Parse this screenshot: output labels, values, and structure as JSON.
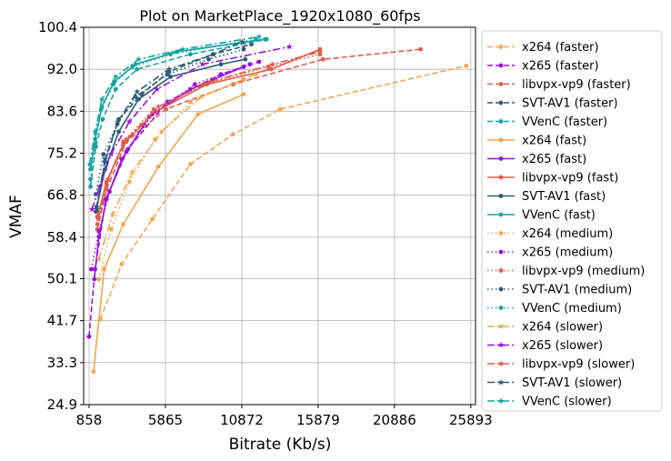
{
  "chart_data": {
    "type": "line",
    "title": "Plot on MarketPlace_1920x1080_60fps",
    "xlabel": "Bitrate (Kb/s)",
    "ylabel": "VMAF",
    "xlim": [
      858,
      25893
    ],
    "ylim": [
      24.9,
      100.4
    ],
    "xticks": [
      "858",
      "5865",
      "10872",
      "15879",
      "20886",
      "25893"
    ],
    "yticks": [
      "24.9",
      "33.3",
      "41.7",
      "50.1",
      "58.4",
      "66.8",
      "75.2",
      "83.6",
      "92.0",
      "100.4"
    ],
    "grid": true,
    "legend_position": "outside-right",
    "series": [
      {
        "name": "x264 (faster)",
        "color": "#f5a54a",
        "dash": "dashed",
        "marker": "circle",
        "x": [
          1600,
          3000,
          5000,
          7500,
          10300,
          13400,
          25600
        ],
        "y": [
          42,
          53,
          62,
          73,
          79,
          84,
          92.7
        ]
      },
      {
        "name": "x265 (faster)",
        "color": "#9b0ee3",
        "dash": "dashed",
        "marker": "circle",
        "x": [
          850,
          1250,
          1950,
          3400,
          6000,
          9500,
          12000
        ],
        "y": [
          38.5,
          52,
          66,
          76,
          85.5,
          91,
          93.5
        ]
      },
      {
        "name": "libvpx-vp9 (faster)",
        "color": "#e35b4a",
        "dash": "dashed",
        "marker": "circle",
        "x": [
          1400,
          2000,
          3300,
          5900,
          10300,
          16200,
          22600
        ],
        "y": [
          60,
          68,
          77.5,
          84,
          89,
          94,
          96
        ]
      },
      {
        "name": "SVT-AV1 (faster)",
        "color": "#2b5b7a",
        "dash": "dashed",
        "marker": "circle",
        "x": [
          1350,
          1900,
          2800,
          4300,
          6100,
          9000,
          11500
        ],
        "y": [
          64.5,
          73.5,
          82,
          87,
          91.5,
          95,
          97
        ]
      },
      {
        "name": "VVenC (faster)",
        "color": "#14a3a3",
        "dash": "dashed",
        "marker": "circle",
        "x": [
          950,
          1300,
          1750,
          2600,
          4000,
          7500,
          12500
        ],
        "y": [
          68.5,
          76.5,
          82,
          88,
          92,
          95,
          98
        ]
      },
      {
        "name": "x264 (fast)",
        "color": "#f5a54a",
        "dash": "solid",
        "marker": "circle",
        "x": [
          1150,
          1850,
          3100,
          5400,
          8000,
          11000
        ],
        "y": [
          31.5,
          52,
          61,
          72.5,
          83,
          87
        ]
      },
      {
        "name": "x265 (fast)",
        "color": "#9b0ee3",
        "dash": "solid",
        "marker": "circle",
        "x": [
          1200,
          1500,
          2000,
          3000,
          4800,
          7500,
          11000
        ],
        "y": [
          50,
          58.5,
          66,
          74,
          82.5,
          88,
          92.5
        ]
      },
      {
        "name": "libvpx-vp9 (fast)",
        "color": "#e35b4a",
        "dash": "solid",
        "marker": "circle",
        "x": [
          1400,
          2000,
          3100,
          5200,
          8600,
          12800,
          16000
        ],
        "y": [
          62.5,
          69.5,
          77,
          83.5,
          89,
          92,
          96
        ]
      },
      {
        "name": "SVT-AV1 (fast)",
        "color": "#2b5b7a",
        "dash": "solid",
        "marker": "circle",
        "x": [
          1300,
          1900,
          2800,
          4100,
          6200,
          9500,
          11100
        ],
        "y": [
          63.5,
          72,
          79.5,
          86,
          90.5,
          93,
          94
        ]
      },
      {
        "name": "VVenC (fast)",
        "color": "#14a3a3",
        "dash": "solid",
        "marker": "circle",
        "x": [
          950,
          1250,
          1700,
          2500,
          3900,
          6600,
          12400
        ],
        "y": [
          72,
          78,
          84.5,
          89.5,
          93,
          95.5,
          98
        ]
      },
      {
        "name": "x264 (medium)",
        "color": "#f5a54a",
        "dash": "dotted",
        "marker": "circle",
        "x": [
          1500,
          2300,
          3500,
          5200,
          7500,
          11000
        ],
        "y": [
          50,
          60,
          69.5,
          78,
          85.5,
          90
        ]
      },
      {
        "name": "x265 (medium)",
        "color": "#9b0ee3",
        "dash": "dotted",
        "marker": "circle",
        "x": [
          1000,
          1500,
          2200,
          3300,
          5000,
          7800,
          11400
        ],
        "y": [
          52,
          59.5,
          67.5,
          75.5,
          83,
          89,
          93
        ]
      },
      {
        "name": "libvpx-vp9 (medium)",
        "color": "#e35b4a",
        "dash": "dotted",
        "marker": "circle",
        "x": [
          1400,
          2000,
          3100,
          5100,
          8400,
          12600,
          16000
        ],
        "y": [
          61,
          69,
          77.5,
          84,
          89,
          92.5,
          95
        ]
      },
      {
        "name": "SVT-AV1 (medium)",
        "color": "#2b5b7a",
        "dash": "dotted",
        "marker": "circle",
        "x": [
          1300,
          1800,
          2700,
          3900,
          6000,
          8700,
          11000
        ],
        "y": [
          67,
          75,
          81,
          86.5,
          91,
          94,
          96
        ]
      },
      {
        "name": "VVenC (medium)",
        "color": "#14a3a3",
        "dash": "dotted",
        "marker": "circle",
        "x": [
          950,
          1250,
          1650,
          2450,
          3700,
          6200,
          11800
        ],
        "y": [
          70,
          77,
          84,
          89,
          92.5,
          95,
          98
        ]
      },
      {
        "name": "x264 (slower)",
        "color": "#f5a54a",
        "dash": "dashdot",
        "marker": "star",
        "x": [
          1500,
          2400,
          3700,
          5600,
          8200,
          11800
        ],
        "y": [
          54,
          63,
          71.5,
          79.5,
          86.5,
          91
        ]
      },
      {
        "name": "x265 (slower)",
        "color": "#9b0ee3",
        "dash": "dashdot",
        "marker": "star",
        "x": [
          1050,
          1550,
          2300,
          3500,
          5300,
          8300,
          14000
        ],
        "y": [
          64,
          68.5,
          75,
          81.5,
          88,
          93,
          96.5
        ]
      },
      {
        "name": "libvpx-vp9 (slower)",
        "color": "#e35b4a",
        "dash": "dashdot",
        "marker": "star",
        "x": [
          1450,
          2100,
          3300,
          5400,
          8800,
          12900,
          16000
        ],
        "y": [
          62,
          70,
          78,
          84.5,
          89.5,
          93,
          95.5
        ]
      },
      {
        "name": "SVT-AV1 (slower)",
        "color": "#2b5b7a",
        "dash": "dashdot",
        "marker": "star",
        "x": [
          1350,
          1900,
          2750,
          4000,
          6100,
          9000,
          10900
        ],
        "y": [
          64,
          74,
          81.5,
          87.5,
          92,
          95,
          97.5
        ]
      },
      {
        "name": "VVenC (slower)",
        "color": "#14a3a3",
        "dash": "dashdot",
        "marker": "star",
        "x": [
          900,
          1250,
          1700,
          2600,
          4100,
          7000,
          12000
        ],
        "y": [
          73,
          79.5,
          86,
          90.5,
          94,
          96,
          98.5
        ]
      }
    ]
  }
}
